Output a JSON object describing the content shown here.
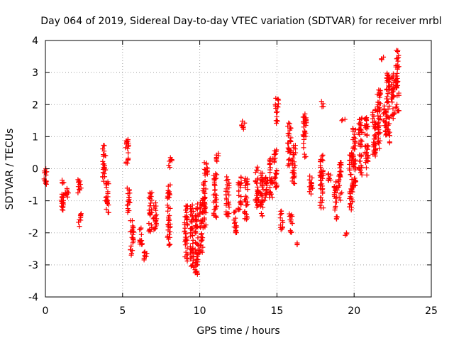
{
  "chart_data": {
    "type": "scatter",
    "title": "Day 064 of 2019, Sidereal Day-to-day VTEC variation (SDTVAR) for receiver mrbl",
    "xlabel": "GPS time / hours",
    "ylabel": "SDTVAR / TECUs",
    "xlim": [
      0,
      25
    ],
    "ylim": [
      -4,
      4
    ],
    "xticks": [
      0,
      5,
      10,
      15,
      20,
      25
    ],
    "yticks": [
      -4,
      -3,
      -2,
      -1,
      0,
      1,
      2,
      3,
      4
    ],
    "grid": true,
    "marker": "+",
    "marker_color": "#ff0000",
    "series": [
      {
        "name": "SDTVAR",
        "clusters": [
          {
            "x": 0.0,
            "y_min": -0.6,
            "y_max": 0.0
          },
          {
            "x": 1.1,
            "y_min": -1.3,
            "y_max": -0.3
          },
          {
            "x": 1.4,
            "y_min": -1.0,
            "y_max": -0.6
          },
          {
            "x": 2.2,
            "y_min": -0.9,
            "y_max": -0.3
          },
          {
            "x": 2.25,
            "y_min": -1.8,
            "y_max": -1.4
          },
          {
            "x": 3.8,
            "y_min": -0.4,
            "y_max": 0.75
          },
          {
            "x": 4.0,
            "y_min": -1.4,
            "y_max": -0.4
          },
          {
            "x": 5.3,
            "y_min": 0.1,
            "y_max": 0.95
          },
          {
            "x": 5.4,
            "y_min": -1.4,
            "y_max": -0.6
          },
          {
            "x": 5.6,
            "y_min": -2.7,
            "y_max": -1.6
          },
          {
            "x": 6.2,
            "y_min": -2.4,
            "y_max": -1.8
          },
          {
            "x": 6.5,
            "y_min": -2.9,
            "y_max": -2.5
          },
          {
            "x": 6.8,
            "y_min": -2.0,
            "y_max": -0.7
          },
          {
            "x": 7.1,
            "y_min": -1.9,
            "y_max": -1.0
          },
          {
            "x": 8.0,
            "y_min": -2.4,
            "y_max": -0.5
          },
          {
            "x": 8.1,
            "y_min": 0.0,
            "y_max": 0.35
          },
          {
            "x": 9.1,
            "y_min": -2.9,
            "y_max": -1.1
          },
          {
            "x": 9.5,
            "y_min": -3.1,
            "y_max": -1.0
          },
          {
            "x": 9.8,
            "y_min": -3.3,
            "y_max": -1.0
          },
          {
            "x": 10.1,
            "y_min": -2.7,
            "y_max": -1.0
          },
          {
            "x": 10.3,
            "y_min": -1.9,
            "y_max": -0.4
          },
          {
            "x": 10.4,
            "y_min": -0.4,
            "y_max": 0.3
          },
          {
            "x": 11.0,
            "y_min": -1.6,
            "y_max": -0.1
          },
          {
            "x": 11.1,
            "y_min": 0.2,
            "y_max": 0.55
          },
          {
            "x": 11.8,
            "y_min": -1.5,
            "y_max": -0.2
          },
          {
            "x": 12.3,
            "y_min": -2.0,
            "y_max": -1.3
          },
          {
            "x": 12.6,
            "y_min": -1.3,
            "y_max": -0.2
          },
          {
            "x": 13.0,
            "y_min": -1.6,
            "y_max": -0.3
          },
          {
            "x": 12.8,
            "y_min": 1.2,
            "y_max": 1.5
          },
          {
            "x": 13.7,
            "y_min": -1.2,
            "y_max": 0.1
          },
          {
            "x": 14.0,
            "y_min": -1.5,
            "y_max": 0.0
          },
          {
            "x": 14.3,
            "y_min": -1.0,
            "y_max": -0.2
          },
          {
            "x": 14.6,
            "y_min": -0.9,
            "y_max": 0.5
          },
          {
            "x": 14.9,
            "y_min": -0.6,
            "y_max": 0.6
          },
          {
            "x": 15.0,
            "y_min": 1.4,
            "y_max": 2.2
          },
          {
            "x": 15.3,
            "y_min": -1.9,
            "y_max": -1.3
          },
          {
            "x": 15.8,
            "y_min": 0.1,
            "y_max": 1.5
          },
          {
            "x": 15.9,
            "y_min": -2.0,
            "y_max": -1.4
          },
          {
            "x": 16.1,
            "y_min": -0.5,
            "y_max": 0.8
          },
          {
            "x": 16.3,
            "y_min": -2.4,
            "y_max": -2.3
          },
          {
            "x": 16.8,
            "y_min": 0.3,
            "y_max": 1.8
          },
          {
            "x": 17.2,
            "y_min": -0.8,
            "y_max": -0.1
          },
          {
            "x": 17.9,
            "y_min": 1.9,
            "y_max": 2.1
          },
          {
            "x": 17.9,
            "y_min": -1.4,
            "y_max": 0.5
          },
          {
            "x": 18.4,
            "y_min": -0.4,
            "y_max": 0.0
          },
          {
            "x": 18.8,
            "y_min": -1.6,
            "y_max": -0.4
          },
          {
            "x": 19.1,
            "y_min": -1.0,
            "y_max": 0.2
          },
          {
            "x": 19.3,
            "y_min": 1.5,
            "y_max": 1.55
          },
          {
            "x": 19.5,
            "y_min": -2.1,
            "y_max": -2.0
          },
          {
            "x": 19.8,
            "y_min": -1.3,
            "y_max": 0.5
          },
          {
            "x": 20.0,
            "y_min": -0.6,
            "y_max": 1.3
          },
          {
            "x": 20.4,
            "y_min": -0.2,
            "y_max": 1.6
          },
          {
            "x": 20.8,
            "y_min": -0.2,
            "y_max": 1.6
          },
          {
            "x": 21.3,
            "y_min": 0.3,
            "y_max": 2.0
          },
          {
            "x": 21.6,
            "y_min": 0.6,
            "y_max": 2.5
          },
          {
            "x": 21.8,
            "y_min": 3.3,
            "y_max": 3.5
          },
          {
            "x": 22.0,
            "y_min": 1.0,
            "y_max": 2.0
          },
          {
            "x": 22.2,
            "y_min": 0.8,
            "y_max": 3.0
          },
          {
            "x": 22.5,
            "y_min": 1.5,
            "y_max": 3.0
          },
          {
            "x": 22.8,
            "y_min": 1.8,
            "y_max": 3.7
          }
        ]
      }
    ]
  }
}
